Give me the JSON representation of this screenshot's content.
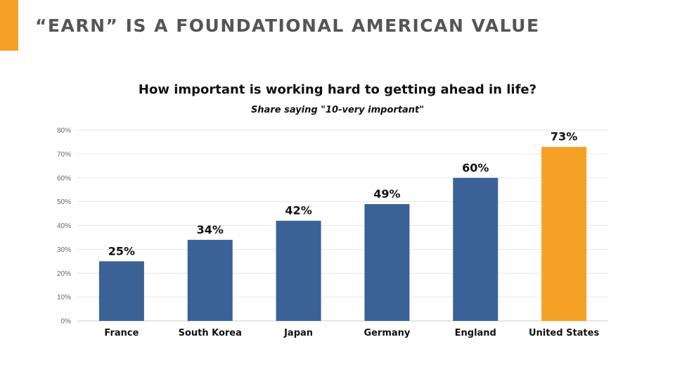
{
  "header": {
    "title": "“EARN” IS A FOUNDATIONAL AMERICAN VALUE",
    "accent_color": "#f5a126"
  },
  "chart_data": {
    "type": "bar",
    "title": "How important is working hard to getting ahead in life?",
    "subtitle": "Share saying \"10-very important\"",
    "categories": [
      "France",
      "South Korea",
      "Japan",
      "Germany",
      "England",
      "United States"
    ],
    "values": [
      25,
      34,
      42,
      49,
      60,
      73
    ],
    "value_labels": [
      "25%",
      "34%",
      "42%",
      "49%",
      "60%",
      "73%"
    ],
    "highlight_index": 5,
    "bar_color": "#3a6296",
    "highlight_color": "#f5a126",
    "ylim": [
      0,
      80
    ],
    "yticks": [
      0,
      10,
      20,
      30,
      40,
      50,
      60,
      70,
      80
    ],
    "ytick_labels": [
      "0%",
      "10%",
      "20%",
      "30%",
      "40%",
      "50%",
      "60%",
      "70%",
      "80%"
    ],
    "grid": true,
    "xlabel": "",
    "ylabel": ""
  }
}
